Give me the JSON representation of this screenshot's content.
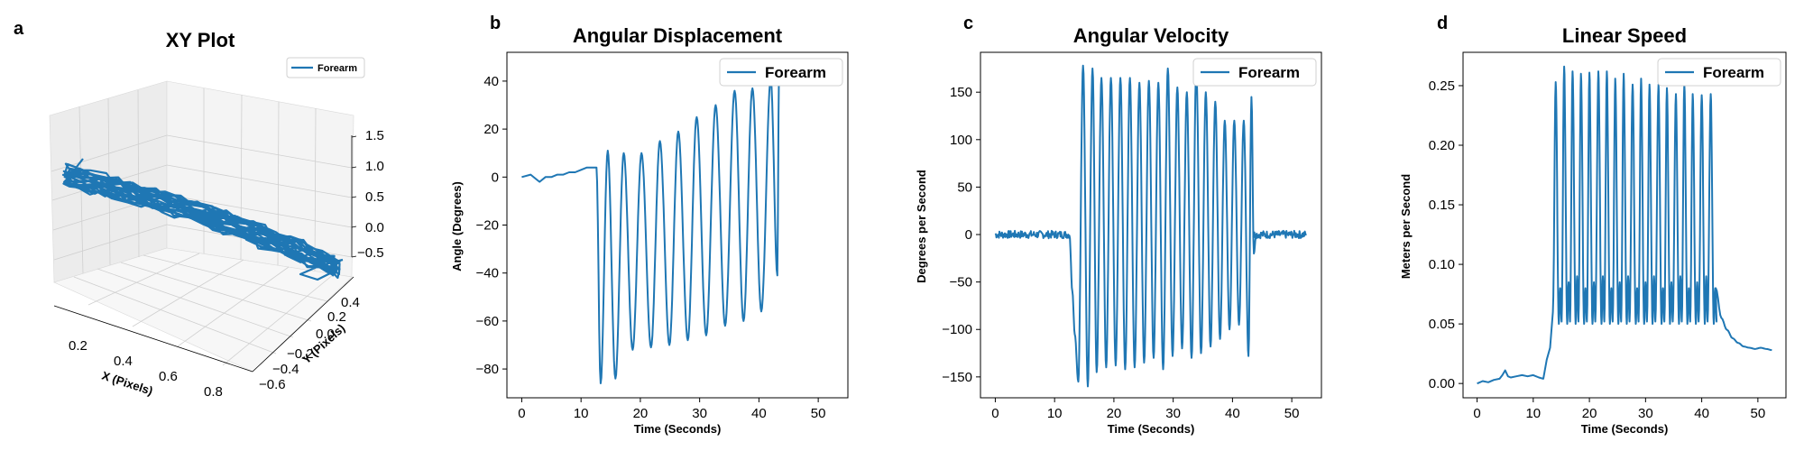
{
  "colors": {
    "series": "#1f77b4",
    "axes": "#000000",
    "pane": "#f2f2f2",
    "grid3d": "#cfcfcf"
  },
  "chart_data": [
    {
      "panel": "a",
      "type": "line3d",
      "title": "XY Plot",
      "xlabel": "X (Pixels)",
      "ylabel": "Y (Pixels)",
      "zlabel": "",
      "xlim": [
        0.1,
        0.85
      ],
      "ylim": [
        -0.65,
        0.45
      ],
      "zlim": [
        -0.5,
        1.5
      ],
      "xticks": [
        "0.2",
        "0.4",
        "0.6",
        "0.8"
      ],
      "yticks": [
        "−0.6",
        "−0.4",
        "−0.2",
        "0.0",
        "0.2",
        "0.4"
      ],
      "zticks": [
        "−0.5",
        "0.0",
        "0.5",
        "1.0",
        "1.5"
      ],
      "legend": {
        "label": "Forearm",
        "position": "upper right"
      },
      "grid": true,
      "series": [
        {
          "name": "Forearm",
          "x_range": [
            0.15,
            0.8
          ],
          "y_range": [
            0.3,
            -0.4
          ],
          "z_range": [
            -0.5,
            0.4
          ]
        }
      ]
    },
    {
      "panel": "b",
      "type": "line",
      "title": "Angular Displacement",
      "xlabel": "Time (Seconds)",
      "ylabel": "Angle (Degrees)",
      "xlim": [
        -2.5,
        55
      ],
      "ylim": [
        -92,
        52
      ],
      "xticks": [
        0,
        10,
        20,
        30,
        40,
        50
      ],
      "yticks": [
        -80,
        -60,
        -40,
        -20,
        0,
        20,
        40
      ],
      "yticklabels": [
        "−80",
        "−60",
        "−40",
        "−20",
        "0",
        "20",
        "40"
      ],
      "legend": {
        "label": "Forearm",
        "position": "upper right"
      },
      "grid": false,
      "series": [
        {
          "name": "Forearm",
          "baseline": {
            "x": [
              0,
              1.5,
              2.5,
              3.0,
              4,
              5,
              6,
              7,
              8,
              9,
              10,
              11,
              12.0,
              12.6
            ],
            "y": [
              0,
              1,
              -1,
              -2,
              0,
              0,
              1,
              1,
              2,
              2,
              3,
              4,
              4,
              4
            ]
          },
          "oscillation": {
            "start": 12.6,
            "start_value": 4,
            "peaks_x": [
              13.3,
              14.5,
              15.8,
              17.2,
              18.7,
              20.2,
              21.8,
              23.3,
              24.9,
              26.4,
              28.0,
              29.5,
              31.1,
              32.7,
              34.3,
              35.9,
              37.4,
              38.9,
              40.4,
              42.0
            ],
            "peaks_y": [
              -86,
              11,
              -84,
              10,
              -72,
              10,
              -71,
              15,
              -70,
              19,
              -68,
              25,
              -66,
              30,
              -62,
              36,
              -60,
              37,
              -56,
              41
            ],
            "end_x": [
              43.1,
              43.4
            ],
            "end_y": [
              -41,
              47
            ]
          }
        }
      ]
    },
    {
      "panel": "c",
      "type": "line",
      "title": "Angular Velocity",
      "xlabel": "Time (Seconds)",
      "ylabel": "Degrees per Second",
      "xlim": [
        -2.5,
        55
      ],
      "ylim": [
        -172,
        192
      ],
      "xticks": [
        0,
        10,
        20,
        30,
        40,
        50
      ],
      "yticks": [
        -150,
        -100,
        -50,
        0,
        50,
        100,
        150
      ],
      "yticklabels": [
        "−150",
        "−100",
        "−50",
        "0",
        "50",
        "100",
        "150"
      ],
      "legend": {
        "label": "Forearm",
        "position": "upper right"
      },
      "grid": false,
      "series": [
        {
          "name": "Forearm",
          "noise_start": [
            0,
            12.5
          ],
          "noise_end": [
            43.5,
            52.5
          ],
          "noise_amplitude": 4,
          "oscillation": {
            "start": 12.5,
            "peaks_x": [
              13.0,
              13.4,
              14.0,
              14.8,
              15.6,
              16.4,
              17.1,
              17.9,
              18.7,
              19.5,
              20.3,
              21.1,
              21.9,
              22.7,
              23.5,
              24.3,
              25.1,
              25.9,
              26.7,
              27.5,
              28.3,
              29.1,
              29.9,
              30.7,
              31.5,
              32.3,
              33.1,
              33.9,
              34.7,
              35.5,
              36.3,
              37.1,
              37.9,
              38.7,
              39.5,
              40.3,
              41.1,
              41.9,
              42.7,
              43.2
            ],
            "peaks_y": [
              -60,
              -105,
              -155,
              178,
              -160,
              175,
              -145,
              165,
              -140,
              165,
              -138,
              165,
              -142,
              165,
              -140,
              160,
              -135,
              162,
              -130,
              160,
              -142,
              175,
              -128,
              155,
              -120,
              150,
              -130,
              175,
              -125,
              150,
              -118,
              140,
              -110,
              120,
              -100,
              120,
              -95,
              120,
              -128,
              145
            ],
            "end_x": [
              43.6,
              44.0
            ],
            "end_y": [
              -20,
              0
            ]
          }
        }
      ]
    },
    {
      "panel": "d",
      "type": "line",
      "title": "Linear Speed",
      "xlabel": "Time (Seconds)",
      "ylabel": "Meters per Second",
      "xlim": [
        -2.5,
        55
      ],
      "ylim": [
        -0.012,
        0.278
      ],
      "xticks": [
        0,
        10,
        20,
        30,
        40,
        50
      ],
      "yticks": [
        0.0,
        0.05,
        0.1,
        0.15,
        0.2,
        0.25
      ],
      "yticklabels": [
        "0.00",
        "0.05",
        "0.10",
        "0.15",
        "0.20",
        "0.25"
      ],
      "legend": {
        "label": "Forearm",
        "position": "upper right"
      },
      "grid": false,
      "series": [
        {
          "name": "Forearm",
          "baseline": {
            "x": [
              0,
              1,
              2,
              3,
              4,
              4.5,
              5,
              5.5,
              6,
              7,
              8,
              9,
              10,
              11,
              11.8,
              12.4,
              13.0,
              13.5
            ],
            "y": [
              0.0,
              0.002,
              0.001,
              0.003,
              0.004,
              0.007,
              0.011,
              0.006,
              0.005,
              0.006,
              0.007,
              0.006,
              0.007,
              0.005,
              0.004,
              0.02,
              0.03,
              0.06
            ]
          },
          "peaks": {
            "x": [
              14.0,
              15.5,
              17.0,
              18.5,
              20.0,
              21.6,
              23.1,
              24.6,
              26.1,
              27.7,
              29.2,
              30.7,
              32.3,
              33.8,
              35.4,
              36.9,
              38.4,
              40.0,
              41.6
            ],
            "y": [
              0.253,
              0.266,
              0.262,
              0.26,
              0.261,
              0.262,
              0.262,
              0.256,
              0.26,
              0.251,
              0.256,
              0.251,
              0.251,
              0.248,
              0.243,
              0.251,
              0.243,
              0.242,
              0.243
            ],
            "trough": 0.05
          },
          "tail": {
            "x": [
              42.5,
              43.5,
              44.5,
              45.5,
              46.5,
              47.5,
              48.5,
              49.5,
              50.5,
              51.5,
              52.5
            ],
            "y": [
              0.08,
              0.055,
              0.045,
              0.038,
              0.034,
              0.031,
              0.03,
              0.029,
              0.03,
              0.029,
              0.028
            ]
          }
        }
      ]
    }
  ]
}
